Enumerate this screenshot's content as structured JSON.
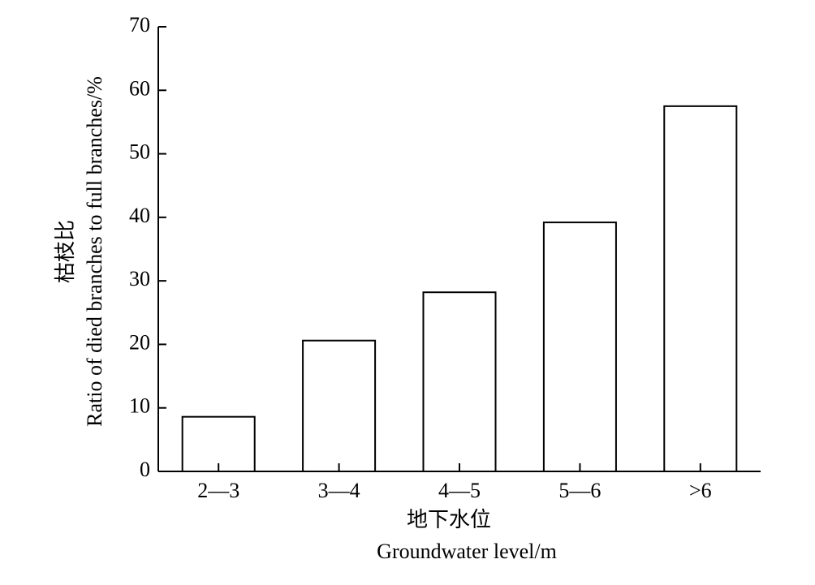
{
  "chart_data": {
    "type": "bar",
    "y_label": [
      "枯枝比",
      "Ratio of died branches to full branches/%"
    ],
    "x_label": [
      "地下水位",
      "Groundwater level/m"
    ],
    "categories": [
      "2—3",
      "3—4",
      "4—5",
      "5—6",
      ">6"
    ],
    "values": [
      8.6,
      20.6,
      28.2,
      39.2,
      57.5
    ],
    "color": "#ffffff",
    "edgecolor": "#000000",
    "ylim": [
      0,
      70
    ],
    "yticks": [
      0,
      10,
      20,
      30,
      40,
      50,
      60,
      70
    ],
    "grid": false
  }
}
